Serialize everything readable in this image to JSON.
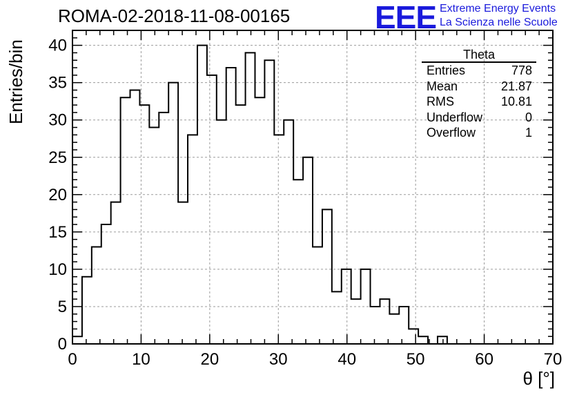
{
  "header": {
    "title": "ROMA-02-2018-11-08-00165",
    "logo_text": "EEE",
    "logo_line1": "Extreme Energy Events",
    "logo_line2": "La Scienza nelle Scuole"
  },
  "stats_box": {
    "title": "Theta",
    "rows": [
      {
        "label": "Entries",
        "value": "778"
      },
      {
        "label": "Mean",
        "value": "21.87"
      },
      {
        "label": "RMS",
        "value": "10.81"
      },
      {
        "label": "Underflow",
        "value": "0"
      },
      {
        "label": "Overflow",
        "value": "1"
      }
    ]
  },
  "chart_data": {
    "type": "bar",
    "style": "step-histogram",
    "xlabel": "θ [°]",
    "ylabel": "Entries/bin",
    "xlim": [
      0,
      70
    ],
    "ylim": [
      0,
      42
    ],
    "bin_width": 1.4,
    "bin_edges_start": 0,
    "values": [
      1,
      9,
      13,
      16,
      19,
      33,
      34,
      32,
      29,
      31,
      35,
      19,
      28,
      40,
      36,
      30,
      37,
      32,
      39,
      33,
      38,
      28,
      30,
      22,
      25,
      13,
      18,
      7,
      10,
      6,
      10,
      5,
      6,
      4,
      5,
      2,
      1,
      0,
      1,
      0,
      0,
      0,
      0,
      0,
      0,
      0,
      0,
      0,
      0,
      0
    ],
    "x_ticks": [
      0,
      10,
      20,
      30,
      40,
      50,
      60,
      70
    ],
    "y_ticks": [
      0,
      5,
      10,
      15,
      20,
      25,
      30,
      35,
      40
    ],
    "grid": true,
    "line_color": "#000000"
  }
}
